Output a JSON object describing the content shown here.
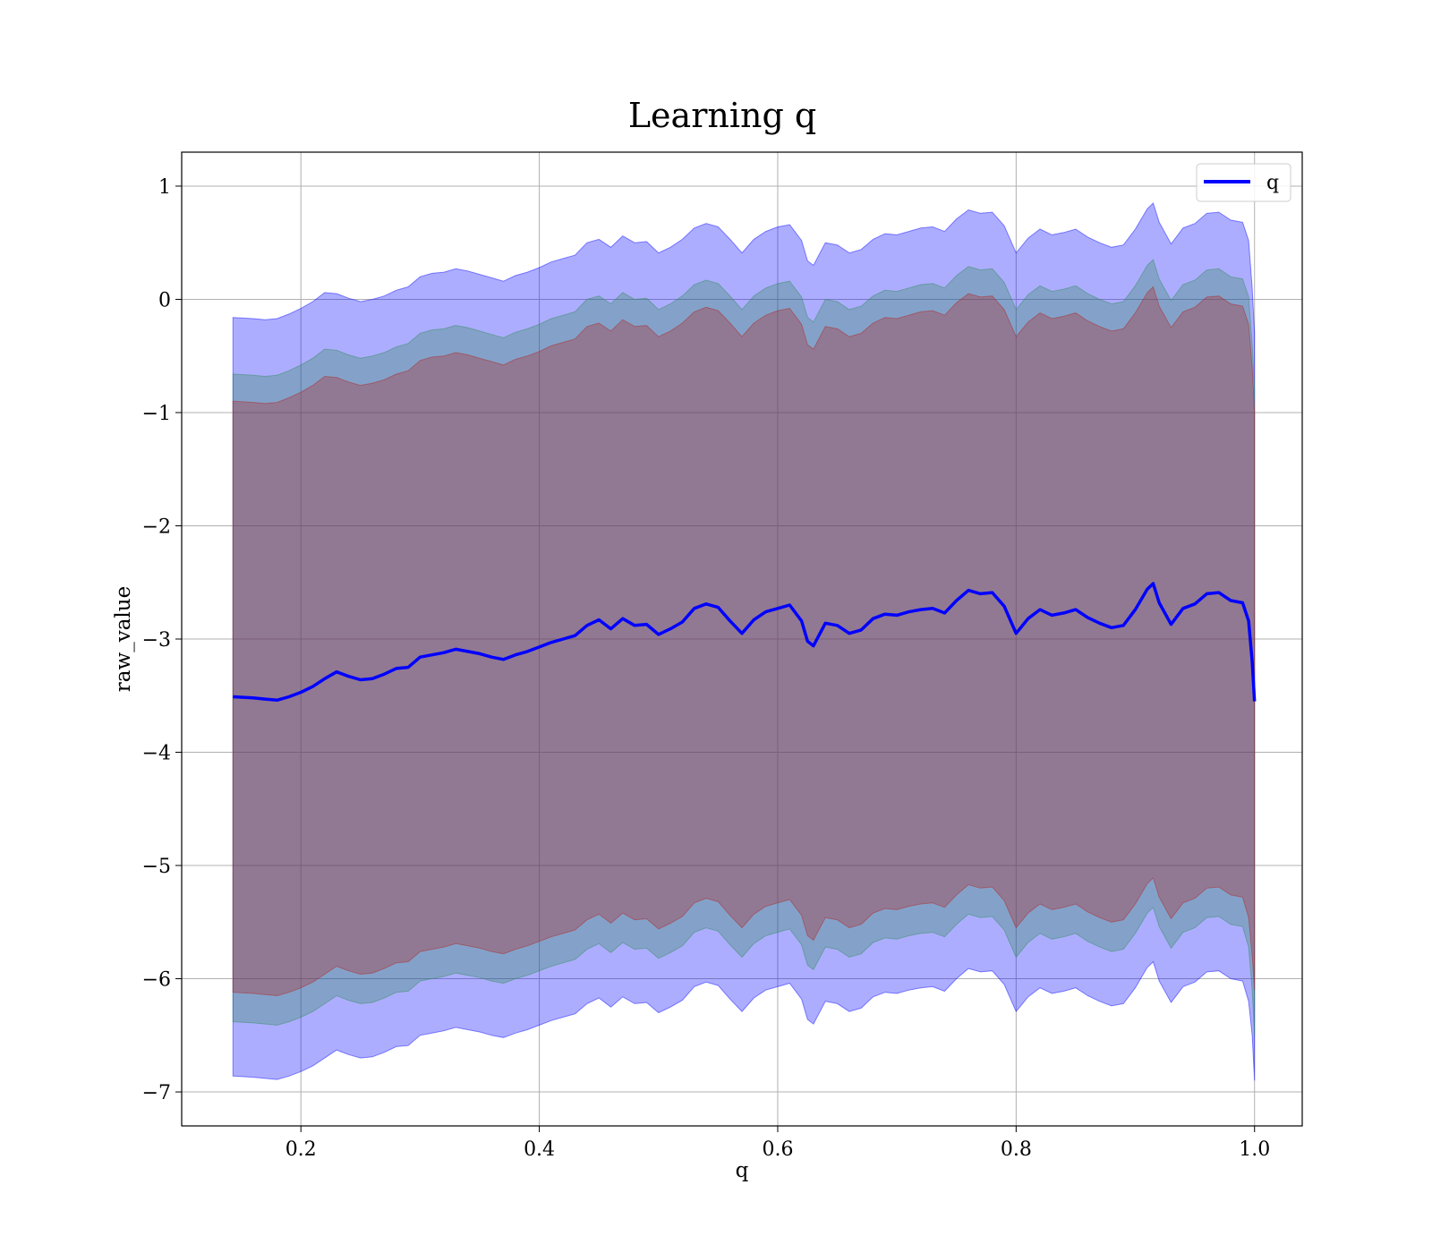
{
  "chart_data": {
    "type": "line",
    "title": "Learning q",
    "xlabel": "q",
    "ylabel": "raw_value",
    "xlim": [
      0.1,
      1.04
    ],
    "ylim": [
      -7.3,
      1.3
    ],
    "x_ticks": [
      0.2,
      0.4,
      0.6,
      0.8,
      1.0
    ],
    "x_tick_labels": [
      "0.2",
      "0.4",
      "0.6",
      "0.8",
      "1.0"
    ],
    "y_ticks": [
      1,
      0,
      -1,
      -2,
      -3,
      -4,
      -5,
      -6,
      -7
    ],
    "y_tick_labels": [
      "1",
      "0",
      "−1",
      "−2",
      "−3",
      "−4",
      "−5",
      "−6",
      "−7"
    ],
    "grid": true,
    "legend": {
      "position": "top-right",
      "entries": [
        "q"
      ]
    },
    "series": [
      {
        "name": "q",
        "color": "#0000ff",
        "x": [
          0.143,
          0.16,
          0.17,
          0.18,
          0.19,
          0.2,
          0.21,
          0.22,
          0.23,
          0.24,
          0.25,
          0.26,
          0.27,
          0.28,
          0.29,
          0.3,
          0.31,
          0.32,
          0.33,
          0.34,
          0.35,
          0.36,
          0.37,
          0.38,
          0.39,
          0.4,
          0.41,
          0.42,
          0.43,
          0.44,
          0.45,
          0.46,
          0.47,
          0.48,
          0.49,
          0.5,
          0.51,
          0.52,
          0.53,
          0.54,
          0.55,
          0.56,
          0.57,
          0.58,
          0.59,
          0.6,
          0.61,
          0.62,
          0.625,
          0.63,
          0.64,
          0.65,
          0.66,
          0.67,
          0.68,
          0.69,
          0.7,
          0.71,
          0.72,
          0.73,
          0.74,
          0.75,
          0.76,
          0.77,
          0.78,
          0.79,
          0.8,
          0.81,
          0.82,
          0.83,
          0.84,
          0.85,
          0.86,
          0.87,
          0.88,
          0.89,
          0.9,
          0.91,
          0.915,
          0.92,
          0.93,
          0.94,
          0.95,
          0.96,
          0.97,
          0.98,
          0.99,
          0.995,
          0.998,
          1.0
        ],
        "values": [
          -3.51,
          -3.52,
          -3.53,
          -3.54,
          -3.51,
          -3.47,
          -3.42,
          -3.35,
          -3.29,
          -3.33,
          -3.36,
          -3.35,
          -3.31,
          -3.26,
          -3.25,
          -3.16,
          -3.14,
          -3.12,
          -3.09,
          -3.11,
          -3.13,
          -3.16,
          -3.18,
          -3.14,
          -3.11,
          -3.07,
          -3.03,
          -3.0,
          -2.97,
          -2.88,
          -2.83,
          -2.91,
          -2.82,
          -2.88,
          -2.87,
          -2.96,
          -2.91,
          -2.85,
          -2.73,
          -2.69,
          -2.72,
          -2.84,
          -2.95,
          -2.83,
          -2.76,
          -2.73,
          -2.7,
          -2.84,
          -3.02,
          -3.06,
          -2.86,
          -2.88,
          -2.95,
          -2.92,
          -2.82,
          -2.78,
          -2.79,
          -2.76,
          -2.74,
          -2.73,
          -2.77,
          -2.66,
          -2.57,
          -2.6,
          -2.59,
          -2.71,
          -2.95,
          -2.82,
          -2.74,
          -2.79,
          -2.77,
          -2.74,
          -2.81,
          -2.86,
          -2.9,
          -2.88,
          -2.74,
          -2.56,
          -2.51,
          -2.68,
          -2.87,
          -2.73,
          -2.69,
          -2.6,
          -2.59,
          -2.66,
          -2.68,
          -2.84,
          -3.2,
          -3.55
        ],
        "band_color": "#0000ff"
      }
    ],
    "bands": [
      {
        "color": "#0000ff",
        "x": [
          0.143,
          0.16,
          0.17,
          0.18,
          0.19,
          0.2,
          0.21,
          0.22,
          0.23,
          0.24,
          0.25,
          0.26,
          0.27,
          0.28,
          0.29,
          0.3,
          0.31,
          0.32,
          0.33,
          0.34,
          0.35,
          0.36,
          0.37,
          0.38,
          0.39,
          0.4,
          0.41,
          0.42,
          0.43,
          0.44,
          0.45,
          0.46,
          0.47,
          0.48,
          0.49,
          0.5,
          0.51,
          0.52,
          0.53,
          0.54,
          0.55,
          0.56,
          0.57,
          0.58,
          0.59,
          0.6,
          0.61,
          0.62,
          0.625,
          0.63,
          0.64,
          0.65,
          0.66,
          0.67,
          0.68,
          0.69,
          0.7,
          0.71,
          0.72,
          0.73,
          0.74,
          0.75,
          0.76,
          0.77,
          0.78,
          0.79,
          0.8,
          0.81,
          0.82,
          0.83,
          0.84,
          0.85,
          0.86,
          0.87,
          0.88,
          0.89,
          0.9,
          0.91,
          0.915,
          0.92,
          0.93,
          0.94,
          0.95,
          0.96,
          0.97,
          0.98,
          0.99,
          0.995,
          0.998,
          1.0
        ],
        "upper": [
          -0.16,
          -0.17,
          -0.18,
          -0.17,
          -0.13,
          -0.08,
          -0.02,
          0.06,
          0.05,
          0.01,
          -0.02,
          0.0,
          0.03,
          0.08,
          0.11,
          0.2,
          0.23,
          0.24,
          0.27,
          0.25,
          0.22,
          0.19,
          0.16,
          0.21,
          0.24,
          0.28,
          0.33,
          0.36,
          0.39,
          0.5,
          0.53,
          0.46,
          0.56,
          0.5,
          0.51,
          0.41,
          0.46,
          0.53,
          0.63,
          0.67,
          0.64,
          0.53,
          0.41,
          0.53,
          0.6,
          0.64,
          0.66,
          0.52,
          0.34,
          0.3,
          0.5,
          0.48,
          0.41,
          0.44,
          0.53,
          0.58,
          0.57,
          0.6,
          0.63,
          0.64,
          0.6,
          0.71,
          0.79,
          0.76,
          0.77,
          0.65,
          0.41,
          0.54,
          0.62,
          0.57,
          0.59,
          0.62,
          0.55,
          0.5,
          0.46,
          0.48,
          0.62,
          0.8,
          0.85,
          0.68,
          0.49,
          0.63,
          0.67,
          0.76,
          0.77,
          0.7,
          0.68,
          0.52,
          0.1,
          -0.3
        ],
        "lower": [
          -6.86,
          -6.87,
          -6.88,
          -6.89,
          -6.86,
          -6.82,
          -6.77,
          -6.7,
          -6.63,
          -6.67,
          -6.7,
          -6.69,
          -6.65,
          -6.6,
          -6.59,
          -6.5,
          -6.48,
          -6.46,
          -6.43,
          -6.45,
          -6.47,
          -6.5,
          -6.52,
          -6.48,
          -6.45,
          -6.41,
          -6.37,
          -6.34,
          -6.31,
          -6.22,
          -6.17,
          -6.25,
          -6.16,
          -6.22,
          -6.21,
          -6.3,
          -6.25,
          -6.19,
          -6.07,
          -6.03,
          -6.06,
          -6.18,
          -6.29,
          -6.17,
          -6.1,
          -6.07,
          -6.04,
          -6.18,
          -6.36,
          -6.4,
          -6.2,
          -6.22,
          -6.29,
          -6.26,
          -6.16,
          -6.12,
          -6.13,
          -6.1,
          -6.08,
          -6.07,
          -6.11,
          -6.0,
          -5.91,
          -5.94,
          -5.93,
          -6.05,
          -6.29,
          -6.16,
          -6.08,
          -6.13,
          -6.11,
          -6.08,
          -6.15,
          -6.2,
          -6.24,
          -6.22,
          -6.08,
          -5.9,
          -5.85,
          -6.02,
          -6.21,
          -6.07,
          -6.03,
          -5.94,
          -5.93,
          -6.0,
          -6.02,
          -6.2,
          -6.5,
          -6.9
        ]
      },
      {
        "color": "#2e8b57",
        "x": [
          0.143,
          0.16,
          0.17,
          0.18,
          0.19,
          0.2,
          0.21,
          0.22,
          0.23,
          0.24,
          0.25,
          0.26,
          0.27,
          0.28,
          0.29,
          0.3,
          0.31,
          0.32,
          0.33,
          0.34,
          0.35,
          0.36,
          0.37,
          0.38,
          0.39,
          0.4,
          0.41,
          0.42,
          0.43,
          0.44,
          0.45,
          0.46,
          0.47,
          0.48,
          0.49,
          0.5,
          0.51,
          0.52,
          0.53,
          0.54,
          0.55,
          0.56,
          0.57,
          0.58,
          0.59,
          0.6,
          0.61,
          0.62,
          0.625,
          0.63,
          0.64,
          0.65,
          0.66,
          0.67,
          0.68,
          0.69,
          0.7,
          0.71,
          0.72,
          0.73,
          0.74,
          0.75,
          0.76,
          0.77,
          0.78,
          0.79,
          0.8,
          0.81,
          0.82,
          0.83,
          0.84,
          0.85,
          0.86,
          0.87,
          0.88,
          0.89,
          0.9,
          0.91,
          0.915,
          0.92,
          0.93,
          0.94,
          0.95,
          0.96,
          0.97,
          0.98,
          0.99,
          0.995,
          0.998,
          1.0
        ],
        "upper": [
          -0.66,
          -0.67,
          -0.68,
          -0.67,
          -0.63,
          -0.58,
          -0.52,
          -0.44,
          -0.45,
          -0.49,
          -0.52,
          -0.5,
          -0.47,
          -0.42,
          -0.39,
          -0.3,
          -0.27,
          -0.26,
          -0.23,
          -0.25,
          -0.28,
          -0.31,
          -0.34,
          -0.29,
          -0.26,
          -0.22,
          -0.17,
          -0.14,
          -0.11,
          0.0,
          0.03,
          -0.04,
          0.06,
          0.0,
          0.01,
          -0.09,
          -0.04,
          0.03,
          0.13,
          0.17,
          0.14,
          0.03,
          -0.09,
          0.03,
          0.1,
          0.14,
          0.16,
          0.02,
          -0.16,
          -0.2,
          0.0,
          -0.02,
          -0.09,
          -0.06,
          0.03,
          0.08,
          0.07,
          0.1,
          0.13,
          0.14,
          0.1,
          0.21,
          0.29,
          0.26,
          0.27,
          0.15,
          -0.09,
          0.04,
          0.12,
          0.07,
          0.09,
          0.12,
          0.05,
          0.0,
          -0.04,
          -0.02,
          0.12,
          0.3,
          0.35,
          0.18,
          -0.01,
          0.13,
          0.17,
          0.26,
          0.27,
          0.2,
          0.18,
          0.02,
          -0.4,
          -0.8
        ],
        "lower": [
          -6.38,
          -6.39,
          -6.4,
          -6.41,
          -6.38,
          -6.34,
          -6.29,
          -6.22,
          -6.15,
          -6.19,
          -6.22,
          -6.21,
          -6.17,
          -6.12,
          -6.11,
          -6.02,
          -6.0,
          -5.98,
          -5.95,
          -5.97,
          -5.99,
          -6.02,
          -6.04,
          -6.0,
          -5.97,
          -5.93,
          -5.89,
          -5.86,
          -5.83,
          -5.74,
          -5.69,
          -5.77,
          -5.68,
          -5.74,
          -5.73,
          -5.82,
          -5.77,
          -5.71,
          -5.59,
          -5.55,
          -5.58,
          -5.7,
          -5.81,
          -5.69,
          -5.62,
          -5.59,
          -5.56,
          -5.7,
          -5.88,
          -5.92,
          -5.72,
          -5.74,
          -5.81,
          -5.78,
          -5.68,
          -5.64,
          -5.65,
          -5.62,
          -5.6,
          -5.59,
          -5.63,
          -5.52,
          -5.43,
          -5.46,
          -5.45,
          -5.57,
          -5.81,
          -5.68,
          -5.6,
          -5.65,
          -5.63,
          -5.6,
          -5.67,
          -5.72,
          -5.76,
          -5.74,
          -5.6,
          -5.42,
          -5.37,
          -5.54,
          -5.73,
          -5.59,
          -5.55,
          -5.46,
          -5.45,
          -5.52,
          -5.54,
          -5.72,
          -6.1,
          -6.5
        ]
      },
      {
        "color": "#b22222",
        "x": [
          0.143,
          0.16,
          0.17,
          0.18,
          0.19,
          0.2,
          0.21,
          0.22,
          0.23,
          0.24,
          0.25,
          0.26,
          0.27,
          0.28,
          0.29,
          0.3,
          0.31,
          0.32,
          0.33,
          0.34,
          0.35,
          0.36,
          0.37,
          0.38,
          0.39,
          0.4,
          0.41,
          0.42,
          0.43,
          0.44,
          0.45,
          0.46,
          0.47,
          0.48,
          0.49,
          0.5,
          0.51,
          0.52,
          0.53,
          0.54,
          0.55,
          0.56,
          0.57,
          0.58,
          0.59,
          0.6,
          0.61,
          0.62,
          0.625,
          0.63,
          0.64,
          0.65,
          0.66,
          0.67,
          0.68,
          0.69,
          0.7,
          0.71,
          0.72,
          0.73,
          0.74,
          0.75,
          0.76,
          0.77,
          0.78,
          0.79,
          0.8,
          0.81,
          0.82,
          0.83,
          0.84,
          0.85,
          0.86,
          0.87,
          0.88,
          0.89,
          0.9,
          0.91,
          0.915,
          0.92,
          0.93,
          0.94,
          0.95,
          0.96,
          0.97,
          0.98,
          0.99,
          0.995,
          0.998,
          1.0
        ],
        "upper": [
          -0.9,
          -0.91,
          -0.92,
          -0.91,
          -0.87,
          -0.82,
          -0.76,
          -0.68,
          -0.69,
          -0.73,
          -0.76,
          -0.74,
          -0.71,
          -0.66,
          -0.63,
          -0.54,
          -0.51,
          -0.5,
          -0.47,
          -0.49,
          -0.52,
          -0.55,
          -0.58,
          -0.53,
          -0.5,
          -0.46,
          -0.41,
          -0.38,
          -0.35,
          -0.24,
          -0.21,
          -0.28,
          -0.18,
          -0.24,
          -0.23,
          -0.33,
          -0.28,
          -0.21,
          -0.11,
          -0.07,
          -0.1,
          -0.21,
          -0.33,
          -0.21,
          -0.14,
          -0.1,
          -0.08,
          -0.22,
          -0.4,
          -0.44,
          -0.24,
          -0.26,
          -0.33,
          -0.3,
          -0.21,
          -0.16,
          -0.17,
          -0.14,
          -0.11,
          -0.1,
          -0.14,
          -0.03,
          0.05,
          0.02,
          0.03,
          -0.09,
          -0.33,
          -0.2,
          -0.12,
          -0.17,
          -0.15,
          -0.12,
          -0.19,
          -0.24,
          -0.28,
          -0.26,
          -0.12,
          0.06,
          0.11,
          -0.06,
          -0.25,
          -0.11,
          -0.07,
          0.02,
          0.03,
          -0.04,
          -0.06,
          -0.22,
          -0.6,
          -1.0
        ],
        "lower": [
          -6.12,
          -6.13,
          -6.14,
          -6.15,
          -6.12,
          -6.08,
          -6.03,
          -5.96,
          -5.89,
          -5.93,
          -5.96,
          -5.95,
          -5.91,
          -5.86,
          -5.85,
          -5.76,
          -5.74,
          -5.72,
          -5.69,
          -5.71,
          -5.73,
          -5.76,
          -5.78,
          -5.74,
          -5.71,
          -5.67,
          -5.63,
          -5.6,
          -5.57,
          -5.48,
          -5.43,
          -5.51,
          -5.42,
          -5.48,
          -5.47,
          -5.56,
          -5.51,
          -5.45,
          -5.33,
          -5.29,
          -5.32,
          -5.44,
          -5.55,
          -5.43,
          -5.36,
          -5.33,
          -5.3,
          -5.44,
          -5.62,
          -5.66,
          -5.46,
          -5.48,
          -5.55,
          -5.52,
          -5.42,
          -5.38,
          -5.39,
          -5.36,
          -5.34,
          -5.33,
          -5.37,
          -5.26,
          -5.17,
          -5.2,
          -5.19,
          -5.31,
          -5.55,
          -5.42,
          -5.34,
          -5.39,
          -5.37,
          -5.34,
          -5.41,
          -5.46,
          -5.5,
          -5.48,
          -5.34,
          -5.16,
          -5.11,
          -5.28,
          -5.47,
          -5.33,
          -5.29,
          -5.2,
          -5.19,
          -5.26,
          -5.28,
          -5.46,
          -5.8,
          -6.1
        ]
      }
    ]
  }
}
